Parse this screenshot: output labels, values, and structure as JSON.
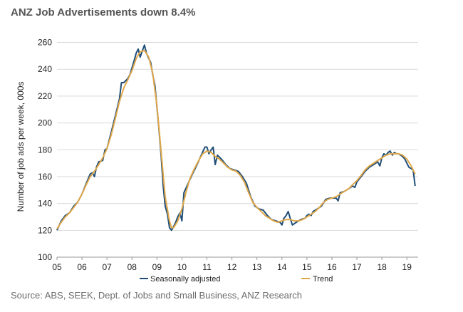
{
  "header": {
    "title": "ANZ Job Advertisements down 8.4%"
  },
  "footer": {
    "source": "Source: ABS, SEEK, Dept. of Jobs and Small Business, ANZ Research"
  },
  "chart_data": {
    "type": "line",
    "title": "ANZ Job Advertisements down 8.4%",
    "xlabel": "",
    "ylabel": "Number of job ads per week, 000s",
    "xlim": [
      2005,
      2019.45
    ],
    "ylim": [
      100,
      265
    ],
    "y_ticks": [
      100,
      120,
      140,
      160,
      180,
      200,
      220,
      240,
      260
    ],
    "x_ticks": [
      {
        "label": "05",
        "x": 2005
      },
      {
        "label": "06",
        "x": 2006
      },
      {
        "label": "07",
        "x": 2007
      },
      {
        "label": "08",
        "x": 2008
      },
      {
        "label": "09",
        "x": 2009
      },
      {
        "label": "10",
        "x": 2010
      },
      {
        "label": "11",
        "x": 2011
      },
      {
        "label": "12",
        "x": 2012
      },
      {
        "label": "13",
        "x": 2013
      },
      {
        "label": "14",
        "x": 2014
      },
      {
        "label": "15",
        "x": 2015
      },
      {
        "label": "16",
        "x": 2016
      },
      {
        "label": "17",
        "x": 2017
      },
      {
        "label": "18",
        "x": 2018
      },
      {
        "label": "19",
        "x": 2019
      }
    ],
    "grid": "horizontal",
    "legend": "bottom",
    "series": [
      {
        "name": "Seasonally adjusted",
        "color": "#1f4e79",
        "points": [
          [
            2005.0,
            120
          ],
          [
            2005.17,
            127
          ],
          [
            2005.33,
            131
          ],
          [
            2005.5,
            133
          ],
          [
            2005.67,
            138
          ],
          [
            2005.83,
            141
          ],
          [
            2006.0,
            147
          ],
          [
            2006.17,
            155
          ],
          [
            2006.33,
            162
          ],
          [
            2006.42,
            163
          ],
          [
            2006.5,
            160
          ],
          [
            2006.58,
            167
          ],
          [
            2006.67,
            171
          ],
          [
            2006.83,
            172
          ],
          [
            2006.92,
            180
          ],
          [
            2007.0,
            181
          ],
          [
            2007.17,
            193
          ],
          [
            2007.33,
            205
          ],
          [
            2007.5,
            218
          ],
          [
            2007.58,
            230
          ],
          [
            2007.67,
            230
          ],
          [
            2007.83,
            233
          ],
          [
            2007.92,
            236
          ],
          [
            2008.0,
            241
          ],
          [
            2008.08,
            246
          ],
          [
            2008.17,
            252
          ],
          [
            2008.25,
            255
          ],
          [
            2008.33,
            249
          ],
          [
            2008.42,
            254
          ],
          [
            2008.5,
            258
          ],
          [
            2008.58,
            252
          ],
          [
            2008.67,
            248
          ],
          [
            2008.75,
            245
          ],
          [
            2008.83,
            236
          ],
          [
            2008.92,
            228
          ],
          [
            2009.0,
            212
          ],
          [
            2009.08,
            195
          ],
          [
            2009.17,
            175
          ],
          [
            2009.25,
            153
          ],
          [
            2009.33,
            138
          ],
          [
            2009.42,
            132
          ],
          [
            2009.5,
            122
          ],
          [
            2009.58,
            120
          ],
          [
            2009.67,
            123
          ],
          [
            2009.75,
            126
          ],
          [
            2009.83,
            130
          ],
          [
            2009.92,
            133
          ],
          [
            2010.0,
            127
          ],
          [
            2010.08,
            148
          ],
          [
            2010.25,
            155
          ],
          [
            2010.42,
            162
          ],
          [
            2010.58,
            168
          ],
          [
            2010.75,
            175
          ],
          [
            2010.92,
            182
          ],
          [
            2011.0,
            182
          ],
          [
            2011.08,
            177
          ],
          [
            2011.17,
            180
          ],
          [
            2011.25,
            182
          ],
          [
            2011.33,
            169
          ],
          [
            2011.42,
            176
          ],
          [
            2011.58,
            173
          ],
          [
            2011.75,
            169
          ],
          [
            2011.92,
            166
          ],
          [
            2012.08,
            165
          ],
          [
            2012.25,
            164
          ],
          [
            2012.42,
            160
          ],
          [
            2012.58,
            155
          ],
          [
            2012.75,
            145
          ],
          [
            2012.92,
            138
          ],
          [
            2013.08,
            136
          ],
          [
            2013.25,
            135
          ],
          [
            2013.42,
            131
          ],
          [
            2013.58,
            128
          ],
          [
            2013.75,
            127
          ],
          [
            2013.92,
            126
          ],
          [
            2014.0,
            124
          ],
          [
            2014.08,
            129
          ],
          [
            2014.17,
            131
          ],
          [
            2014.25,
            134
          ],
          [
            2014.33,
            129
          ],
          [
            2014.42,
            124
          ],
          [
            2014.58,
            126
          ],
          [
            2014.75,
            128
          ],
          [
            2014.92,
            129
          ],
          [
            2015.0,
            131
          ],
          [
            2015.08,
            132
          ],
          [
            2015.17,
            131
          ],
          [
            2015.25,
            134
          ],
          [
            2015.42,
            136
          ],
          [
            2015.58,
            138
          ],
          [
            2015.75,
            143
          ],
          [
            2015.92,
            144
          ],
          [
            2016.0,
            144
          ],
          [
            2016.17,
            144
          ],
          [
            2016.25,
            142
          ],
          [
            2016.33,
            148
          ],
          [
            2016.5,
            149
          ],
          [
            2016.67,
            151
          ],
          [
            2016.83,
            153
          ],
          [
            2016.92,
            152
          ],
          [
            2017.0,
            156
          ],
          [
            2017.17,
            160
          ],
          [
            2017.33,
            164
          ],
          [
            2017.5,
            167
          ],
          [
            2017.67,
            169
          ],
          [
            2017.83,
            171
          ],
          [
            2017.92,
            168
          ],
          [
            2018.0,
            174
          ],
          [
            2018.08,
            177
          ],
          [
            2018.17,
            176
          ],
          [
            2018.25,
            178
          ],
          [
            2018.33,
            179
          ],
          [
            2018.42,
            176
          ],
          [
            2018.5,
            178
          ],
          [
            2018.58,
            177
          ],
          [
            2018.67,
            177
          ],
          [
            2018.75,
            176
          ],
          [
            2018.83,
            175
          ],
          [
            2018.92,
            173
          ],
          [
            2019.0,
            170
          ],
          [
            2019.08,
            167
          ],
          [
            2019.17,
            166
          ],
          [
            2019.25,
            165
          ],
          [
            2019.33,
            153
          ]
        ]
      },
      {
        "name": "Trend",
        "color": "#e0a84a",
        "points": [
          [
            2005.0,
            121
          ],
          [
            2005.17,
            126
          ],
          [
            2005.33,
            130
          ],
          [
            2005.5,
            133
          ],
          [
            2005.67,
            137
          ],
          [
            2005.83,
            141
          ],
          [
            2006.0,
            147
          ],
          [
            2006.17,
            154
          ],
          [
            2006.33,
            160
          ],
          [
            2006.5,
            164
          ],
          [
            2006.67,
            169
          ],
          [
            2006.83,
            174
          ],
          [
            2007.0,
            181
          ],
          [
            2007.17,
            191
          ],
          [
            2007.33,
            203
          ],
          [
            2007.5,
            216
          ],
          [
            2007.67,
            226
          ],
          [
            2007.83,
            232
          ],
          [
            2008.0,
            239
          ],
          [
            2008.17,
            248
          ],
          [
            2008.33,
            253
          ],
          [
            2008.5,
            254
          ],
          [
            2008.67,
            249
          ],
          [
            2008.83,
            237
          ],
          [
            2009.0,
            213
          ],
          [
            2009.17,
            178
          ],
          [
            2009.33,
            145
          ],
          [
            2009.5,
            127
          ],
          [
            2009.58,
            122
          ],
          [
            2009.67,
            122
          ],
          [
            2009.83,
            127
          ],
          [
            2010.0,
            136
          ],
          [
            2010.17,
            149
          ],
          [
            2010.33,
            159
          ],
          [
            2010.5,
            166
          ],
          [
            2010.67,
            172
          ],
          [
            2010.83,
            177
          ],
          [
            2011.0,
            179
          ],
          [
            2011.17,
            178
          ],
          [
            2011.33,
            175
          ],
          [
            2011.5,
            173
          ],
          [
            2011.67,
            170
          ],
          [
            2011.83,
            167
          ],
          [
            2012.0,
            165
          ],
          [
            2012.17,
            164
          ],
          [
            2012.33,
            161
          ],
          [
            2012.5,
            156
          ],
          [
            2012.67,
            148
          ],
          [
            2012.83,
            141
          ],
          [
            2013.0,
            137
          ],
          [
            2013.17,
            134
          ],
          [
            2013.33,
            131
          ],
          [
            2013.5,
            129
          ],
          [
            2013.67,
            127
          ],
          [
            2013.83,
            126
          ],
          [
            2014.0,
            127
          ],
          [
            2014.17,
            128
          ],
          [
            2014.33,
            128
          ],
          [
            2014.5,
            127
          ],
          [
            2014.67,
            127
          ],
          [
            2014.83,
            128
          ],
          [
            2015.0,
            130
          ],
          [
            2015.17,
            132
          ],
          [
            2015.33,
            134
          ],
          [
            2015.5,
            137
          ],
          [
            2015.67,
            141
          ],
          [
            2015.83,
            143
          ],
          [
            2016.0,
            144
          ],
          [
            2016.17,
            145
          ],
          [
            2016.33,
            147
          ],
          [
            2016.5,
            149
          ],
          [
            2016.67,
            151
          ],
          [
            2016.83,
            154
          ],
          [
            2017.0,
            157
          ],
          [
            2017.17,
            161
          ],
          [
            2017.33,
            165
          ],
          [
            2017.5,
            168
          ],
          [
            2017.67,
            170
          ],
          [
            2017.83,
            172
          ],
          [
            2018.0,
            174
          ],
          [
            2018.17,
            176
          ],
          [
            2018.33,
            177
          ],
          [
            2018.5,
            177
          ],
          [
            2018.67,
            177
          ],
          [
            2018.83,
            176
          ],
          [
            2019.0,
            173
          ],
          [
            2019.17,
            168
          ],
          [
            2019.33,
            162
          ]
        ]
      }
    ]
  }
}
